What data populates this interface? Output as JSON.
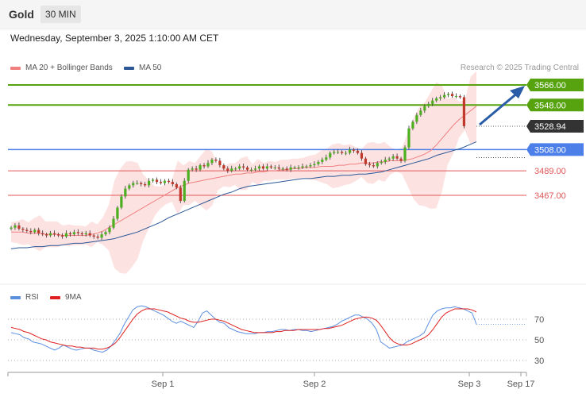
{
  "header": {
    "symbol": "Gold",
    "interval": "30 MIN",
    "datetime": "Wednesday, September 3, 2025 1:10:00 AM CET"
  },
  "legend": {
    "ma20_bb": "MA 20 + Bollinger Bands",
    "ma50": "MA 50",
    "research": "Research © 2025 Trading Central"
  },
  "rsi_legend": {
    "rsi": "RSI",
    "ma9": "9MA"
  },
  "colors": {
    "bullish": "#4caf1f",
    "bearish": "#c0392b",
    "resistance": "#56a30f",
    "pivot": "#4d7fe8",
    "support": "#e05656",
    "ma20": "#f08080",
    "ma50": "#2b5797",
    "rsi": "#5b8fe0",
    "rsi_ma": "#e02020",
    "arrow": "#2b5ca8"
  },
  "chart_data": [
    {
      "type": "candlestick",
      "title": "Gold",
      "interval": "30 MIN",
      "ylim": [
        3395,
        3580
      ],
      "x_ticks": [
        "Sep 1",
        "Sep 2",
        "Sep 3",
        "Sep 17"
      ],
      "levels": [
        {
          "label": "3566.00",
          "value": 3566.0,
          "kind": "resistance"
        },
        {
          "label": "3548.00",
          "value": 3548.0,
          "kind": "resistance"
        },
        {
          "label": "3528.94",
          "value": 3528.94,
          "kind": "last"
        },
        {
          "label": "3508.00",
          "value": 3508.0,
          "kind": "pivot"
        },
        {
          "label": "3489.00",
          "value": 3489.0,
          "kind": "support"
        },
        {
          "label": "3467.00",
          "value": 3467.0,
          "kind": "support"
        }
      ],
      "closes": [
        3438,
        3440,
        3437,
        3436,
        3435,
        3434,
        3436,
        3433,
        3432,
        3431,
        3433,
        3432,
        3431,
        3430,
        3433,
        3432,
        3434,
        3433,
        3432,
        3433,
        3431,
        3430,
        3429,
        3432,
        3434,
        3438,
        3446,
        3456,
        3466,
        3473,
        3476,
        3478,
        3478,
        3477,
        3476,
        3480,
        3481,
        3479,
        3478,
        3480,
        3479,
        3477,
        3474,
        3462,
        3480,
        3490,
        3491,
        3490,
        3494,
        3493,
        3496,
        3499,
        3498,
        3494,
        3491,
        3489,
        3491,
        3491,
        3493,
        3492,
        3490,
        3490,
        3491,
        3493,
        3491,
        3493,
        3492,
        3492,
        3491,
        3491,
        3490,
        3492,
        3492,
        3492,
        3493,
        3493,
        3494,
        3495,
        3497,
        3499,
        3501,
        3505,
        3506,
        3506,
        3505,
        3505,
        3508,
        3507,
        3505,
        3500,
        3495,
        3494,
        3493,
        3496,
        3497,
        3499,
        3500,
        3502,
        3500,
        3498,
        3510,
        3527,
        3533,
        3539,
        3543,
        3547,
        3549,
        3552,
        3554,
        3555,
        3557,
        3558,
        3556,
        3556,
        3555,
        3529
      ],
      "ma20": [
        3434,
        3434,
        3434,
        3433,
        3433,
        3433,
        3432,
        3432,
        3432,
        3431,
        3431,
        3431,
        3431,
        3431,
        3432,
        3433,
        3435,
        3438,
        3441,
        3444,
        3447,
        3450,
        3453,
        3456,
        3459,
        3462,
        3465,
        3468,
        3471,
        3474,
        3476,
        3478,
        3479,
        3480,
        3481,
        3482,
        3483,
        3484,
        3485,
        3486,
        3486,
        3487,
        3487,
        3488,
        3488,
        3489,
        3489,
        3490,
        3490,
        3491,
        3491,
        3492,
        3492,
        3492,
        3493,
        3493,
        3493,
        3494,
        3494,
        3495,
        3495,
        3496,
        3496,
        3496,
        3497,
        3497,
        3498,
        3498,
        3498,
        3499,
        3500,
        3502,
        3504,
        3507,
        3512,
        3518,
        3524,
        3530,
        3535,
        3539,
        3543,
        3547
      ],
      "ma50": [
        3419,
        3420,
        3420,
        3421,
        3421,
        3422,
        3422,
        3423,
        3424,
        3424,
        3425,
        3426,
        3427,
        3428,
        3430,
        3432,
        3434,
        3437,
        3440,
        3443,
        3447,
        3450,
        3453,
        3456,
        3459,
        3462,
        3465,
        3468,
        3470,
        3473,
        3475,
        3476,
        3477,
        3478,
        3479,
        3480,
        3481,
        3482,
        3482,
        3483,
        3484,
        3484,
        3485,
        3485,
        3486,
        3486,
        3487,
        3488,
        3490,
        3492,
        3494,
        3496,
        3498,
        3500,
        3503,
        3505,
        3507,
        3509,
        3512,
        3515
      ]
    },
    {
      "type": "line",
      "title": "RSI",
      "series": [
        {
          "name": "RSI",
          "values": [
            57,
            56,
            55,
            52,
            51,
            48,
            47,
            46,
            44,
            42,
            40,
            42,
            45,
            43,
            41,
            40,
            41,
            42,
            42,
            40,
            39,
            38,
            40,
            44,
            50,
            56,
            65,
            72,
            79,
            82,
            83,
            82,
            80,
            78,
            76,
            74,
            71,
            68,
            66,
            68,
            66,
            64,
            62,
            68,
            76,
            78,
            74,
            70,
            67,
            66,
            62,
            60,
            58,
            57,
            56,
            56,
            56,
            57,
            57,
            58,
            58,
            59,
            60,
            60,
            59,
            60,
            60,
            59,
            59,
            58,
            59,
            60,
            61,
            62,
            63,
            65,
            68,
            70,
            72,
            74,
            74,
            72,
            70,
            66,
            60,
            48,
            45,
            42,
            43,
            44,
            45,
            48,
            50,
            52,
            54,
            57,
            66,
            74,
            78,
            80,
            81,
            81,
            82,
            81,
            80,
            78,
            76,
            65
          ]
        },
        {
          "name": "9MA",
          "values": [
            62,
            61,
            60,
            58,
            57,
            55,
            53,
            51,
            50,
            48,
            47,
            46,
            45,
            44,
            44,
            43,
            43,
            42,
            42,
            42,
            41,
            41,
            42,
            44,
            47,
            52,
            58,
            64,
            70,
            75,
            78,
            80,
            80,
            80,
            79,
            78,
            77,
            75,
            73,
            71,
            70,
            68,
            67,
            67,
            68,
            69,
            70,
            70,
            69,
            68,
            66,
            64,
            62,
            60,
            59,
            58,
            57,
            57,
            57,
            57,
            57,
            58,
            58,
            59,
            59,
            59,
            60,
            60,
            60,
            60,
            60,
            60,
            61,
            61,
            62,
            63,
            64,
            66,
            68,
            70,
            71,
            72,
            72,
            71,
            69,
            64,
            58,
            52,
            48,
            46,
            45,
            45,
            46,
            48,
            50,
            52,
            55,
            60,
            66,
            72,
            76,
            78,
            80,
            80,
            80,
            80,
            79,
            77
          ]
        }
      ],
      "ylim": [
        20,
        100
      ],
      "y_ticks": [
        "70",
        "50",
        "30"
      ]
    }
  ]
}
